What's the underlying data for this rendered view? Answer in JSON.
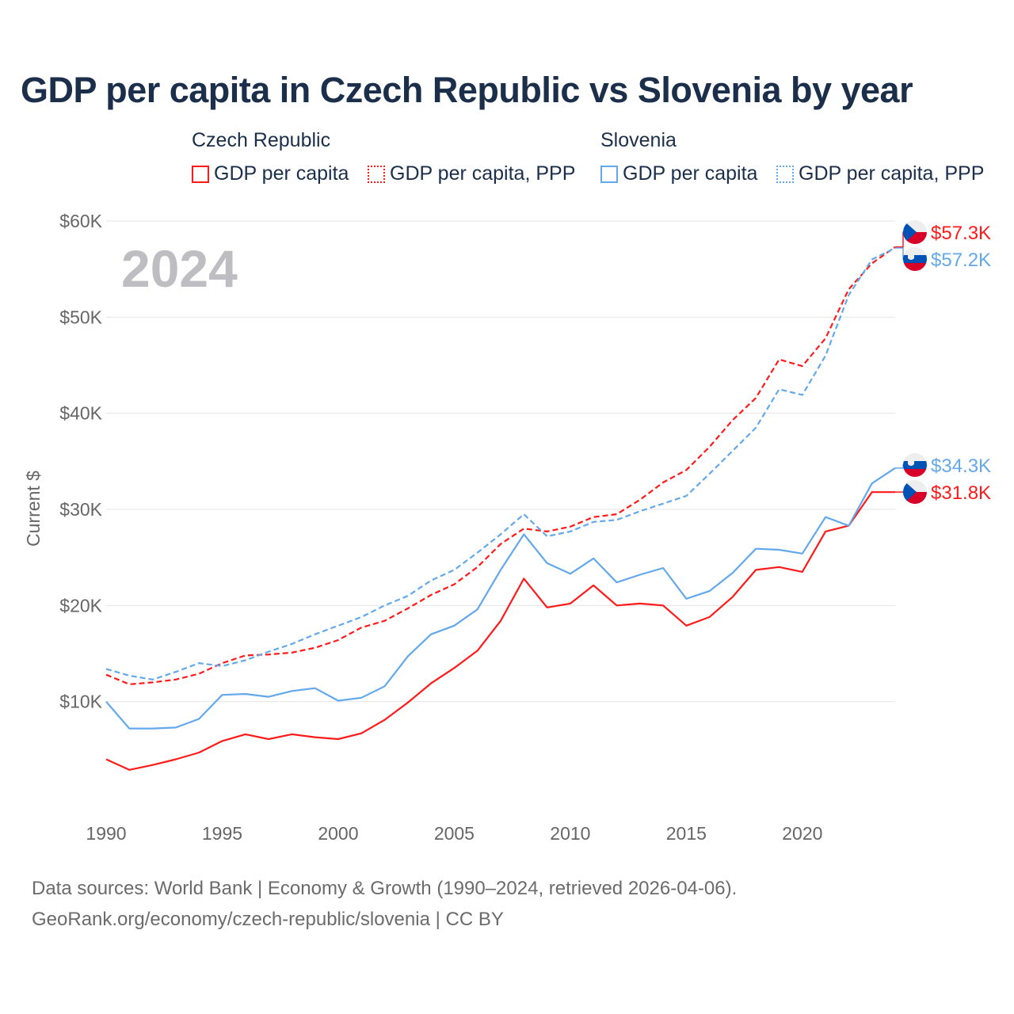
{
  "title": "GDP per capita in Czech Republic vs Slovenia by year",
  "legend": {
    "groups": [
      "Czech Republic",
      "Slovenia"
    ],
    "items": [
      {
        "label": "GDP per capita",
        "color": "#ff1a1a",
        "style": "solid"
      },
      {
        "label": "GDP per capita, PPP",
        "color": "#ff1a1a",
        "style": "dotted"
      },
      {
        "label": "GDP per capita",
        "color": "#64a8ec",
        "style": "solid"
      },
      {
        "label": "GDP per capita, PPP",
        "color": "#64a8ec",
        "style": "dotted"
      }
    ]
  },
  "year_label": "2024",
  "footer": {
    "line1": "Data sources: World Bank | Economy & Growth (1990–2024, retrieved 2026-04-06).",
    "line2": "GeoRank.org/economy/czech-republic/slovenia | CC BY"
  },
  "chart_data": {
    "type": "line",
    "title": "GDP per capita in Czech Republic vs Slovenia by year",
    "xlabel": "",
    "ylabel": "Current $",
    "xlim": [
      1990,
      2024
    ],
    "ylim": [
      0,
      60000
    ],
    "x_ticks": [
      1990,
      1995,
      2000,
      2005,
      2010,
      2015,
      2020
    ],
    "x_tick_labels": [
      "1990",
      "1995",
      "2000",
      "2005",
      "2010",
      "2015",
      "2020"
    ],
    "y_ticks": [
      10000,
      20000,
      30000,
      40000,
      50000,
      60000
    ],
    "y_tick_labels": [
      "$10K",
      "$20K",
      "$30K",
      "$40K",
      "$50K",
      "$60K"
    ],
    "grid": true,
    "legend_position": "top",
    "x": [
      1990,
      1991,
      1992,
      1993,
      1994,
      1995,
      1996,
      1997,
      1998,
      1999,
      2000,
      2001,
      2002,
      2003,
      2004,
      2005,
      2006,
      2007,
      2008,
      2009,
      2010,
      2011,
      2012,
      2013,
      2014,
      2015,
      2016,
      2017,
      2018,
      2019,
      2020,
      2021,
      2022,
      2023,
      2024
    ],
    "series": [
      {
        "name": "Czech Republic GDP per capita",
        "color": "#ff1a1a",
        "dashed": false,
        "end_label": "$31.8K",
        "flag": "cz",
        "values": [
          4000,
          2900,
          3400,
          4000,
          4700,
          5900,
          6600,
          6100,
          6600,
          6300,
          6100,
          6700,
          8100,
          9900,
          11900,
          13500,
          15300,
          18400,
          22800,
          19800,
          20200,
          22100,
          20000,
          20200,
          20000,
          17900,
          18800,
          20900,
          23700,
          24000,
          23500,
          27700,
          28300,
          31800,
          31800
        ]
      },
      {
        "name": "Czech Republic GDP per capita, PPP",
        "color": "#ff1a1a",
        "dashed": true,
        "end_label": "$57.3K",
        "flag": "cz",
        "values": [
          12800,
          11800,
          12000,
          12300,
          12900,
          14000,
          14800,
          14900,
          15100,
          15600,
          16400,
          17700,
          18400,
          19700,
          21100,
          22200,
          24000,
          26400,
          28000,
          27700,
          28200,
          29200,
          29500,
          31000,
          32800,
          34100,
          36500,
          39300,
          41600,
          45600,
          44900,
          47800,
          52900,
          55600,
          57300
        ]
      },
      {
        "name": "Slovenia GDP per capita",
        "color": "#64a8ec",
        "dashed": false,
        "end_label": "$34.3K",
        "flag": "si",
        "values": [
          10000,
          7200,
          7200,
          7300,
          8200,
          10700,
          10800,
          10500,
          11100,
          11400,
          10100,
          10400,
          11600,
          14700,
          17000,
          17900,
          19600,
          23700,
          27400,
          24400,
          23300,
          24900,
          22400,
          23200,
          23900,
          20700,
          21500,
          23400,
          25900,
          25800,
          25400,
          29200,
          28300,
          32700,
          34300
        ]
      },
      {
        "name": "Slovenia GDP per capita, PPP",
        "color": "#64a8ec",
        "dashed": true,
        "end_label": "$57.2K",
        "flag": "si",
        "values": [
          13400,
          12700,
          12300,
          13100,
          14000,
          13700,
          14300,
          15200,
          16000,
          17000,
          17900,
          18800,
          20000,
          21000,
          22600,
          23700,
          25500,
          27400,
          29500,
          27200,
          27700,
          28700,
          28900,
          29800,
          30600,
          31400,
          33700,
          36100,
          38500,
          42500,
          41900,
          46000,
          52300,
          56000,
          57200
        ]
      }
    ]
  }
}
